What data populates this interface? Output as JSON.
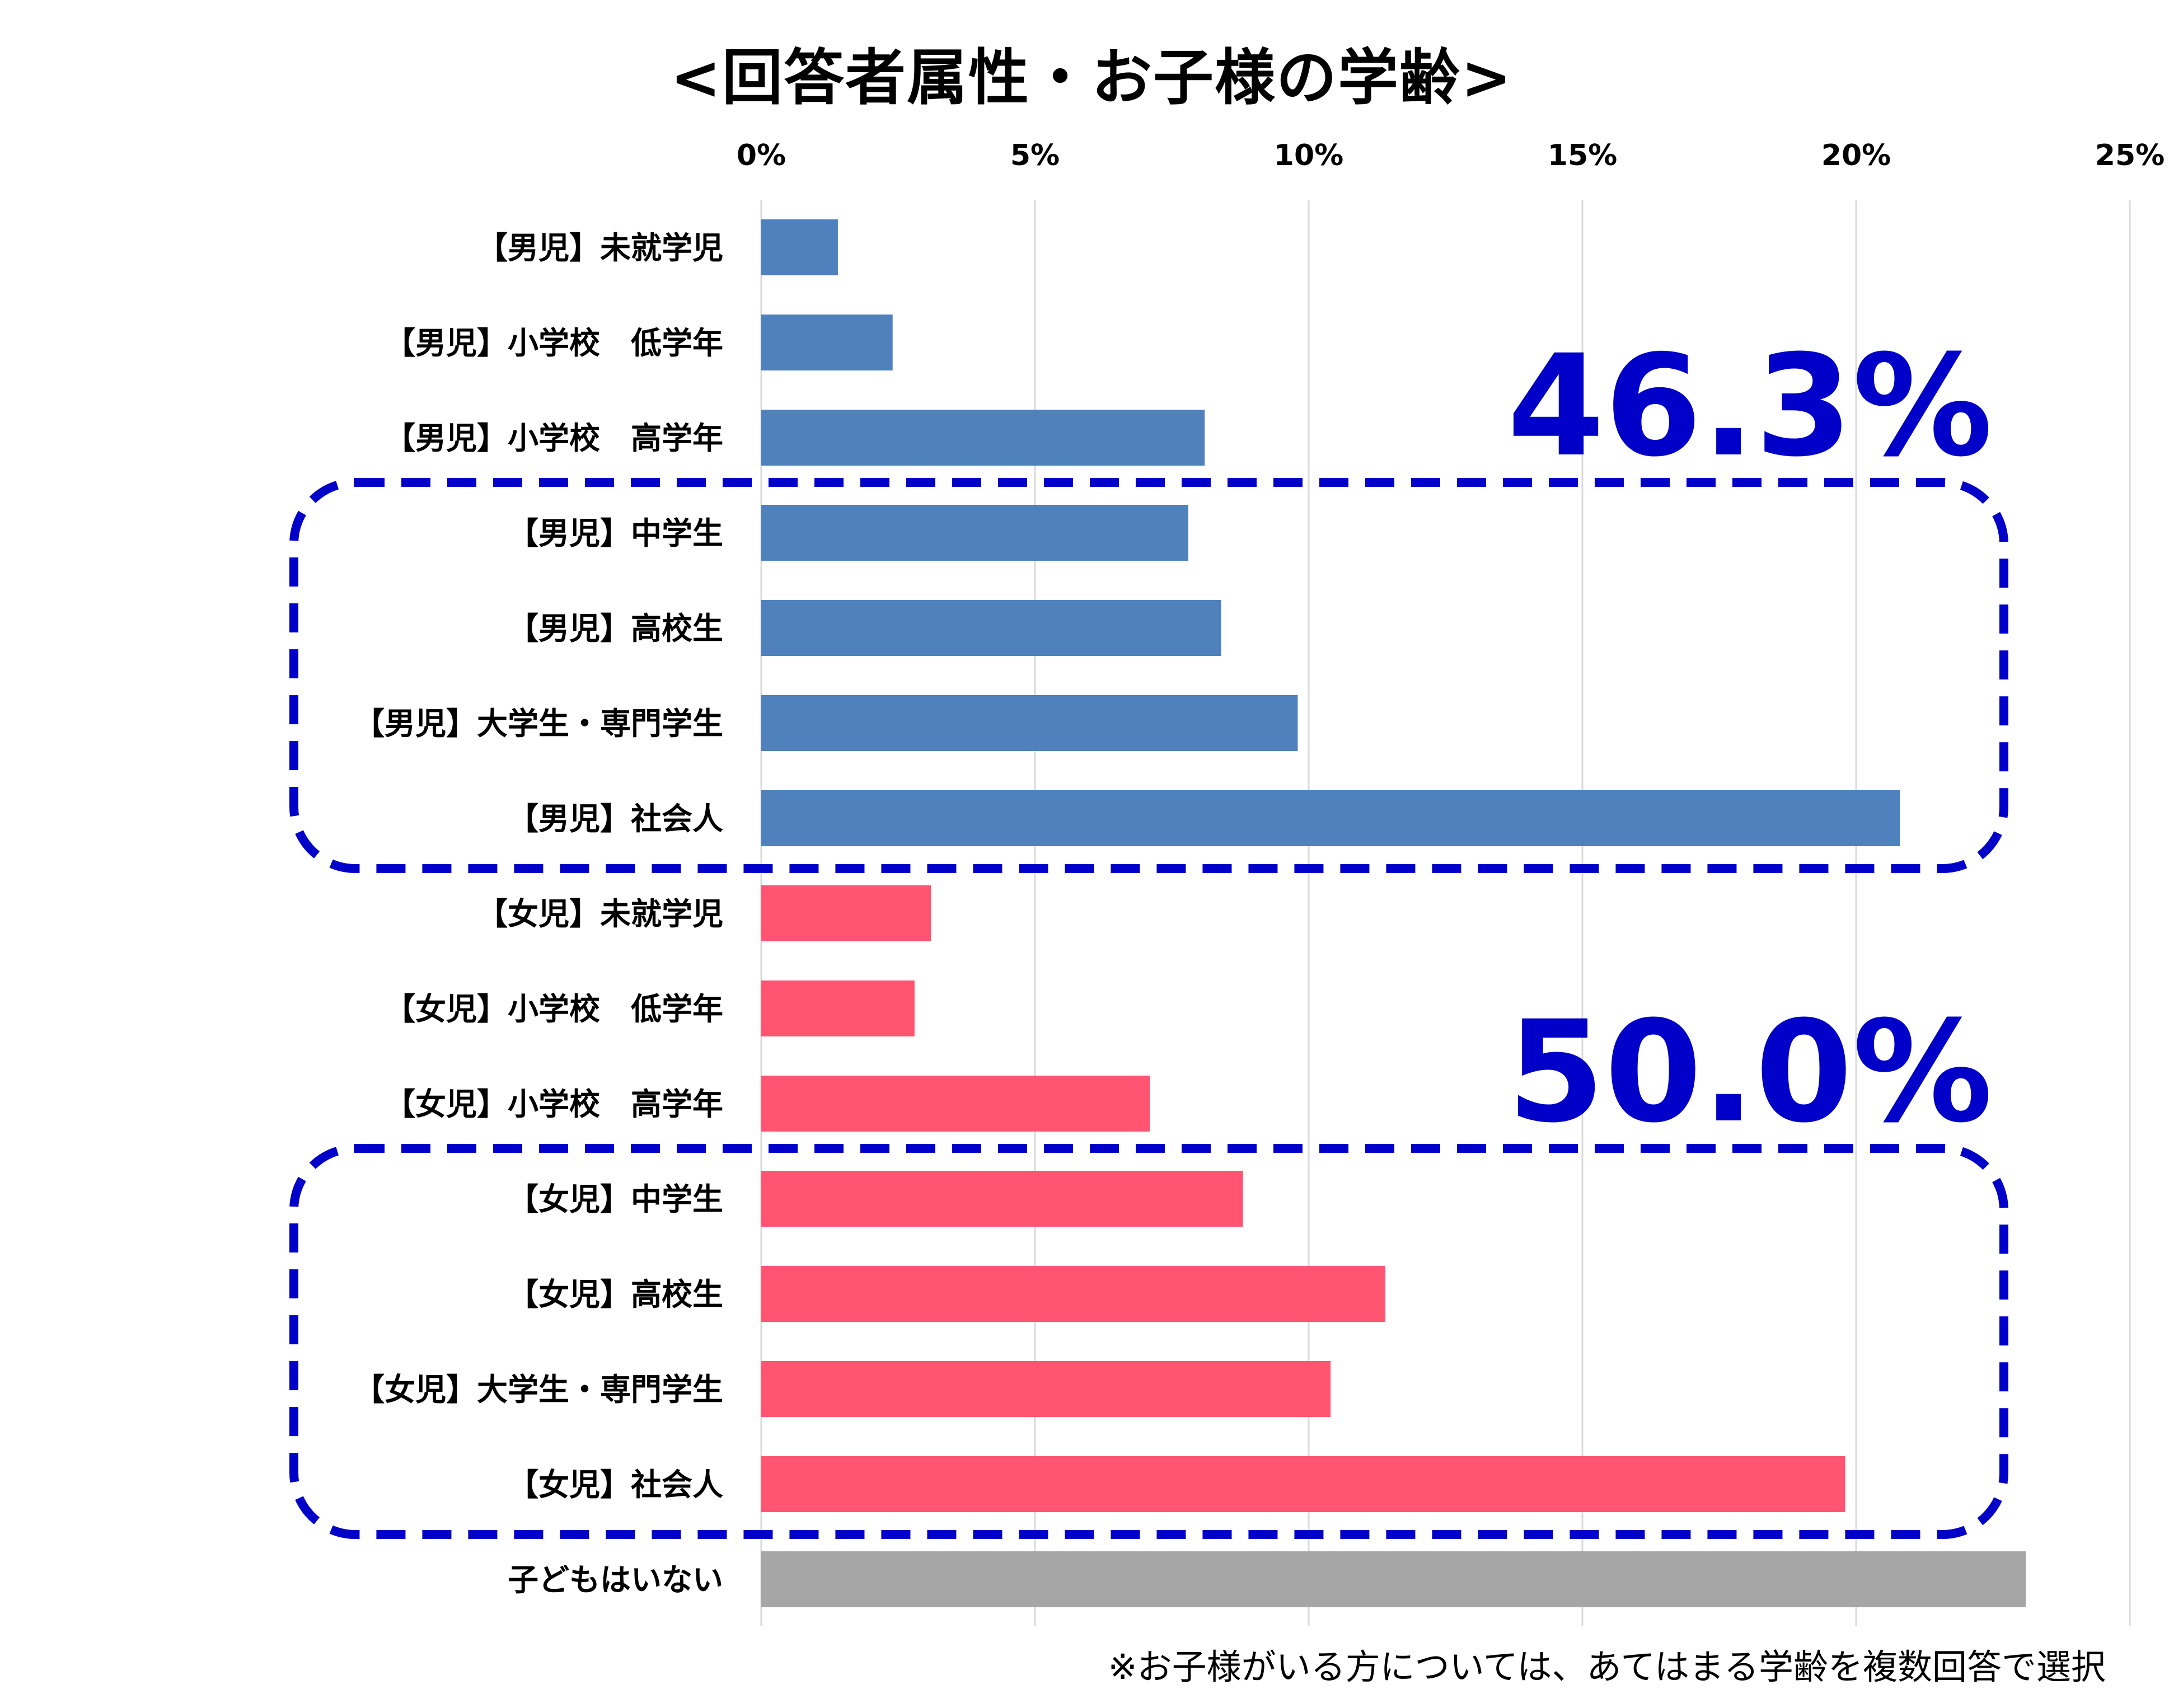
{
  "chart_data": {
    "type": "bar",
    "orientation": "horizontal",
    "title": "<回答者属性・お子様の学齢>",
    "xlim": [
      0,
      25
    ],
    "x_ticks": [
      0,
      5,
      10,
      15,
      20,
      25
    ],
    "x_tick_labels": [
      "0%",
      "5%",
      "10%",
      "15%",
      "20%",
      "25%"
    ],
    "x_axis_position": "top",
    "grid": true,
    "categories": [
      "【男児】未就学児",
      "【男児】小学校　低学年",
      "【男児】小学校　高学年",
      "【男児】中学生",
      "【男児】高校生",
      "【男児】大学生・専門学生",
      "【男児】社会人",
      "【女児】未就学児",
      "【女児】小学校　低学年",
      "【女児】小学校　高学年",
      "【女児】中学生",
      "【女児】高校生",
      "【女児】大学生・専門学生",
      "【女児】社会人",
      "子どもはいない"
    ],
    "values": [
      1.4,
      2.4,
      8.1,
      7.8,
      8.4,
      9.8,
      20.8,
      3.1,
      2.8,
      7.1,
      8.8,
      11.4,
      10.4,
      19.8,
      23.1
    ],
    "bar_colors": [
      "#4f81bd",
      "#4f81bd",
      "#4f81bd",
      "#4f81bd",
      "#4f81bd",
      "#4f81bd",
      "#4f81bd",
      "#ff5573",
      "#ff5573",
      "#ff5573",
      "#ff5573",
      "#ff5573",
      "#ff5573",
      "#ff5573",
      "#a6a6a6"
    ],
    "annotations": [
      {
        "text": "46.3%",
        "group_from": 3,
        "group_to": 6
      },
      {
        "text": "50.0%",
        "group_from": 10,
        "group_to": 13
      }
    ],
    "annotation_color": "#0000c8",
    "grid_color": "#d9d9d9"
  },
  "footnote": "※お子様がいる方については、あてはまる学齢を複数回答で選択"
}
